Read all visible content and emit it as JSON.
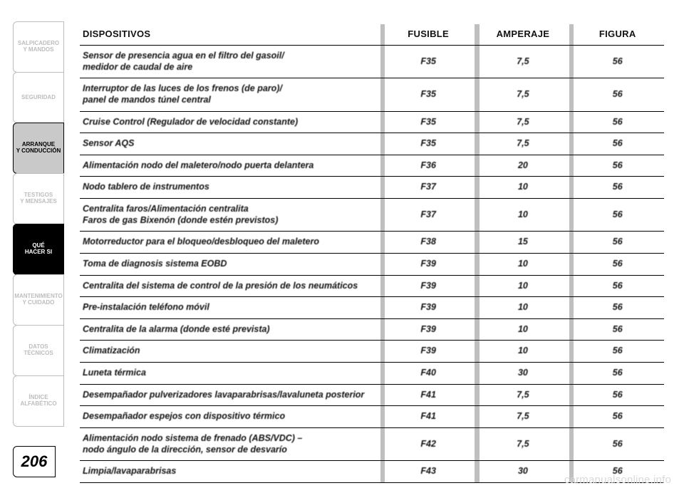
{
  "page_number": "206",
  "watermark": "carmanualsonline.info",
  "sidebar": {
    "tabs": [
      {
        "label": "SALPICADERO\nY MANDOS",
        "style": "dim"
      },
      {
        "label": "SEGURIDAD",
        "style": "dim"
      },
      {
        "label": "ARRANQUE\nY CONDUCCIÓN",
        "style": "active"
      },
      {
        "label": "TESTIGOS\nY MENSAJES",
        "style": "dim"
      },
      {
        "label": "QUÉ\nHACER SI",
        "style": "q"
      },
      {
        "label": "MANTENIMIENTO\nY CUIDADO",
        "style": "dim"
      },
      {
        "label": "DATOS\nTÉCNICOS",
        "style": "dim"
      },
      {
        "label": "ÍNDICE\nALFABÉTICO",
        "style": "dim"
      }
    ]
  },
  "table": {
    "headers": {
      "devices": "DISPOSITIVOS",
      "fuse": "FUSIBLE",
      "amp": "AMPERAJE",
      "fig": "FIGURA"
    },
    "rows": [
      {
        "d": "Sensor de presencia agua en el filtro del gasoil/\nmedidor de caudal de aire",
        "f": "F35",
        "a": "7,5",
        "g": "56"
      },
      {
        "d": "Interruptor de las luces de los frenos (de paro)/\npanel de mandos túnel central",
        "f": "F35",
        "a": "7,5",
        "g": "56"
      },
      {
        "d": "Cruise Control (Regulador de velocidad constante)",
        "f": "F35",
        "a": "7,5",
        "g": "56"
      },
      {
        "d": "Sensor AQS",
        "f": "F35",
        "a": "7,5",
        "g": "56"
      },
      {
        "d": "Alimentación nodo del maletero/nodo puerta delantera",
        "f": "F36",
        "a": "20",
        "g": "56"
      },
      {
        "d": "Nodo tablero de instrumentos",
        "f": "F37",
        "a": "10",
        "g": "56"
      },
      {
        "d": "Centralita faros/Alimentación centralita\nFaros de gas Bixenón (donde estén previstos)",
        "f": "F37",
        "a": "10",
        "g": "56"
      },
      {
        "d": "Motorreductor para el bloqueo/desbloqueo del maletero",
        "f": "F38",
        "a": "15",
        "g": "56"
      },
      {
        "d": "Toma de diagnosis sistema EOBD",
        "f": "F39",
        "a": "10",
        "g": "56"
      },
      {
        "d": "Centralita del sistema de control de la presión de los neumáticos",
        "f": "F39",
        "a": "10",
        "g": "56"
      },
      {
        "d": "Pre-instalación teléfono móvil",
        "f": "F39",
        "a": "10",
        "g": "56"
      },
      {
        "d": "Centralita de la alarma (donde esté prevista)",
        "f": "F39",
        "a": "10",
        "g": "56"
      },
      {
        "d": "Climatización",
        "f": "F39",
        "a": "10",
        "g": "56"
      },
      {
        "d": "Luneta térmica",
        "f": "F40",
        "a": "30",
        "g": "56"
      },
      {
        "d": "Desempañador pulverizadores lavaparabrisas/lavaluneta posterior",
        "f": "F41",
        "a": "7,5",
        "g": "56"
      },
      {
        "d": "Desempañador espejos con dispositivo térmico",
        "f": "F41",
        "a": "7,5",
        "g": "56"
      },
      {
        "d": "Alimentación nodo sistema de frenado (ABS/VDC) –\nnodo ángulo de la dirección, sensor de desvarío",
        "f": "F42",
        "a": "7,5",
        "g": "56"
      },
      {
        "d": "Limpia/lavaparabrisas",
        "f": "F43",
        "a": "30",
        "g": "56"
      }
    ]
  }
}
